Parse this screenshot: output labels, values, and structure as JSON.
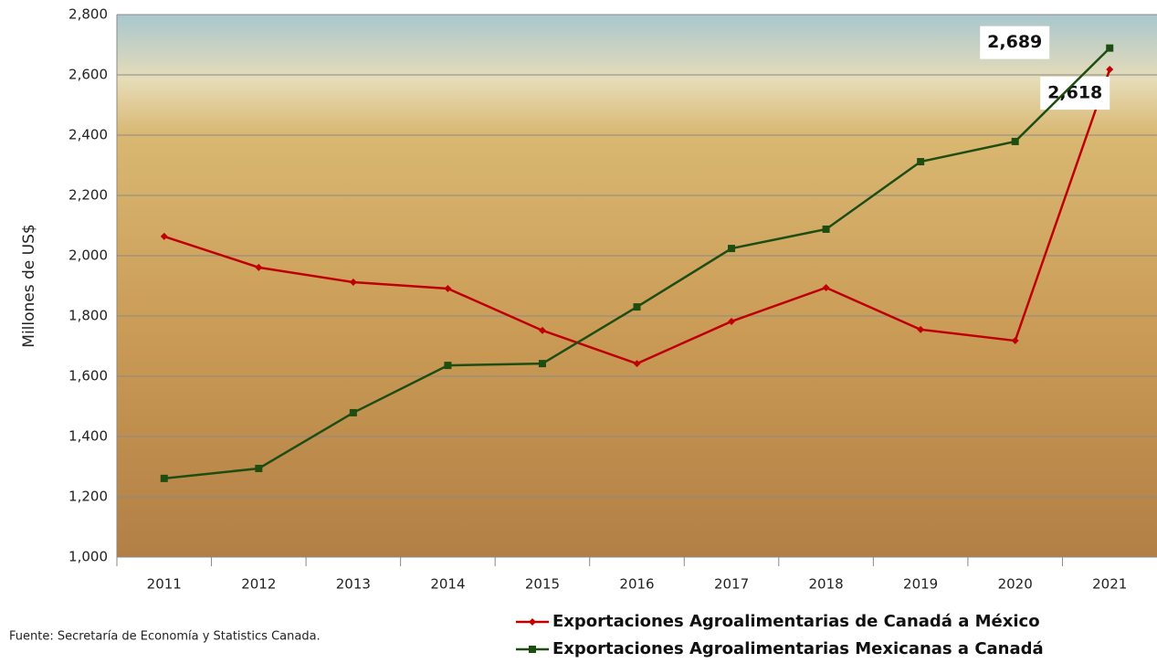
{
  "chart_data": {
    "type": "line",
    "y_label": "Millones de US$",
    "source": "Fuente: Secretaría de Economía y Statistics Canada.",
    "categories": [
      "2011",
      "2012",
      "2013",
      "2014",
      "2015",
      "2016",
      "2017",
      "2018",
      "2019",
      "2020",
      "2021"
    ],
    "series": [
      {
        "name": "Exportaciones Agroalimentarias de Canadá a México",
        "color": "#c00000",
        "marker": "diamond",
        "values": [
          2064,
          1961,
          1912,
          1891,
          1752,
          1642,
          1782,
          1894,
          1755,
          1718,
          2618
        ],
        "value_labels": [
          null,
          null,
          null,
          null,
          null,
          null,
          null,
          null,
          null,
          null,
          "2,618"
        ]
      },
      {
        "name": "Exportaciones Agroalimentarias Mexicanas a Canadá",
        "color": "#1e4d12",
        "marker": "square",
        "values": [
          1261,
          1294,
          1479,
          1636,
          1642,
          1830,
          2024,
          2088,
          2312,
          2379,
          2689
        ],
        "value_labels": [
          null,
          null,
          null,
          null,
          null,
          null,
          null,
          null,
          null,
          null,
          "2,689"
        ]
      }
    ],
    "ylim": [
      1000,
      2800
    ],
    "yticks": [
      {
        "value": 1000,
        "label": "1,000"
      },
      {
        "value": 1200,
        "label": "1,200"
      },
      {
        "value": 1400,
        "label": "1,400"
      },
      {
        "value": 1600,
        "label": "1,600"
      },
      {
        "value": 1800,
        "label": "1,800"
      },
      {
        "value": 2000,
        "label": "2,000"
      },
      {
        "value": 2200,
        "label": "2,200"
      },
      {
        "value": 2400,
        "label": "2,400"
      },
      {
        "value": 2600,
        "label": "2,600"
      },
      {
        "value": 2800,
        "label": "2,800"
      }
    ],
    "grid": true
  }
}
